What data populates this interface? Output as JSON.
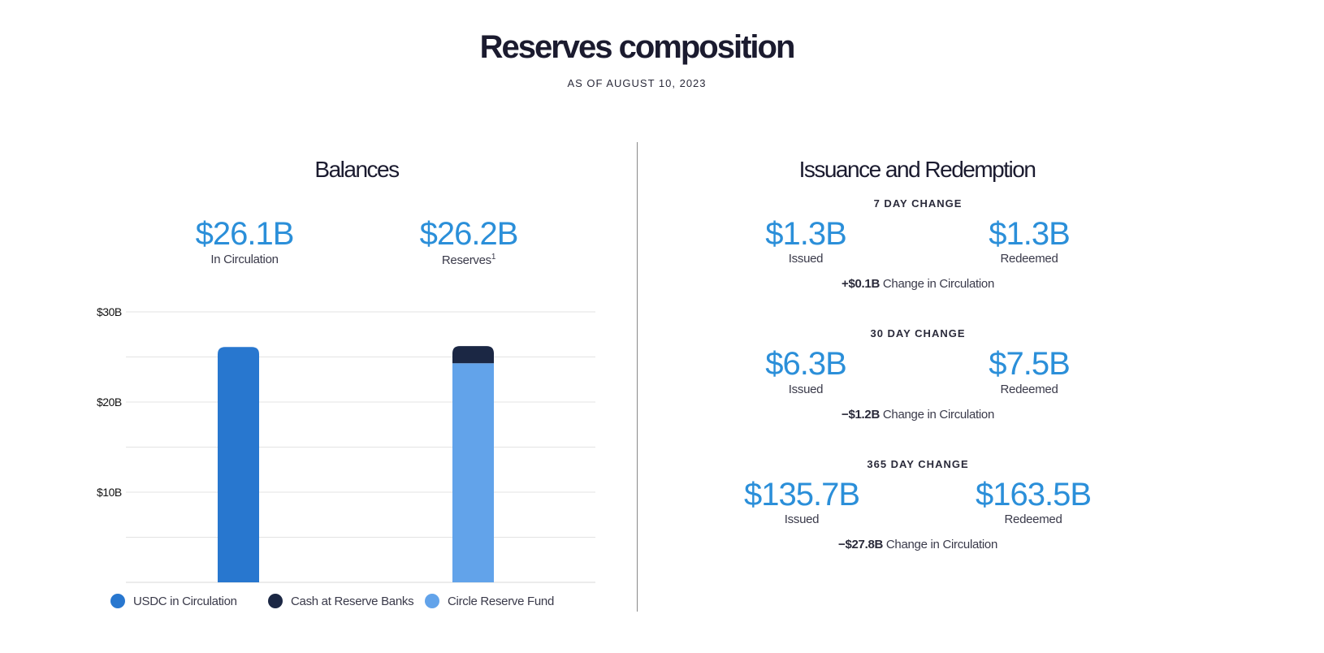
{
  "header": {
    "title": "Reserves composition",
    "subtitle": "AS OF AUGUST 10, 2023"
  },
  "balances": {
    "title": "Balances",
    "in_circulation_value": "$26.1B",
    "in_circulation_label": "In Circulation",
    "reserves_value": "$26.2B",
    "reserves_label": "Reserves",
    "reserves_footnote": "1"
  },
  "issuance": {
    "title": "Issuance and Redemption",
    "periods": [
      {
        "heading": "7 DAY CHANGE",
        "issued_value": "$1.3B",
        "issued_label": "Issued",
        "redeemed_value": "$1.3B",
        "redeemed_label": "Redeemed",
        "change_value": "+$0.1B",
        "change_label": "Change in Circulation"
      },
      {
        "heading": "30 DAY CHANGE",
        "issued_value": "$6.3B",
        "issued_label": "Issued",
        "redeemed_value": "$7.5B",
        "redeemed_label": "Redeemed",
        "change_value": "−$1.2B",
        "change_label": "Change in Circulation"
      },
      {
        "heading": "365 DAY CHANGE",
        "issued_value": "$135.7B",
        "issued_label": "Issued",
        "redeemed_value": "$163.5B",
        "redeemed_label": "Redeemed",
        "change_value": "−$27.8B",
        "change_label": "Change in Circulation"
      }
    ]
  },
  "chart_data": {
    "type": "bar",
    "stacked": true,
    "categories": [
      "",
      ""
    ],
    "series": [
      {
        "name": "USDC in Circulation",
        "color": "#2877cf",
        "values": [
          26.1,
          0
        ]
      },
      {
        "name": "Cash at Reserve Banks",
        "color": "#1b2744",
        "values": [
          0,
          1.9
        ]
      },
      {
        "name": "Circle Reserve Fund",
        "color": "#62a3ea",
        "values": [
          0,
          24.3
        ]
      }
    ],
    "yticks": [
      "$10B",
      "$20B",
      "$30B"
    ],
    "ytick_values": [
      10,
      20,
      30
    ],
    "ylim": [
      0,
      30
    ],
    "grid": true,
    "legend_position": "bottom"
  }
}
